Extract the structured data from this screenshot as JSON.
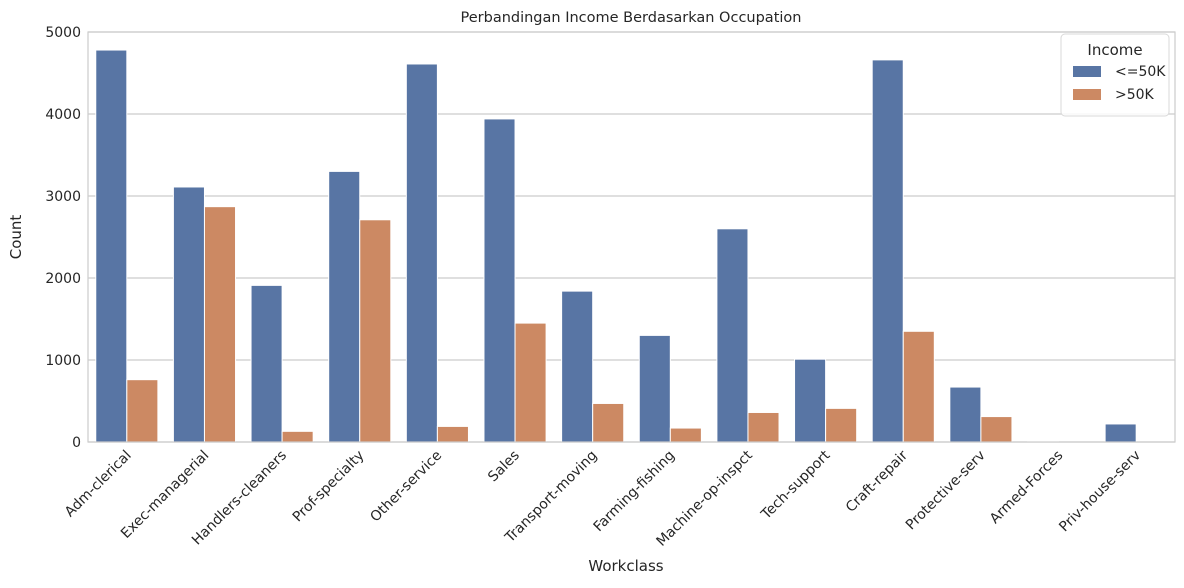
{
  "chart_data": {
    "type": "bar",
    "title": "Perbandingan Income Berdasarkan Occupation",
    "xlabel": "Workclass",
    "ylabel": "Count",
    "ylim": [
      0,
      5000
    ],
    "yticks": [
      0,
      1000,
      2000,
      3000,
      4000,
      5000
    ],
    "ytick_labels": [
      "0",
      "1000",
      "2000",
      "3000",
      "4000",
      "5000"
    ],
    "grid": "y",
    "legend": {
      "title": "Income",
      "placement": "top-right"
    },
    "categories": [
      "Adm-clerical",
      "Exec-managerial",
      "Handlers-cleaners",
      "Prof-specialty",
      "Other-service",
      "Sales",
      "Transport-moving",
      "Farming-fishing",
      "Machine-op-inspct",
      "Tech-support",
      "Craft-repair",
      "Protective-serv",
      "Armed-Forces",
      "Priv-house-serv"
    ],
    "series": [
      {
        "name": "<=50K",
        "color": "#5875a4",
        "values": [
          4780,
          3110,
          1910,
          3300,
          4610,
          3940,
          1840,
          1300,
          2600,
          1010,
          4660,
          670,
          10,
          220
        ]
      },
      {
        "name": ">50K",
        "color": "#cc8963",
        "values": [
          760,
          2870,
          130,
          2710,
          190,
          1450,
          470,
          170,
          360,
          410,
          1350,
          310,
          0,
          0
        ]
      }
    ]
  }
}
